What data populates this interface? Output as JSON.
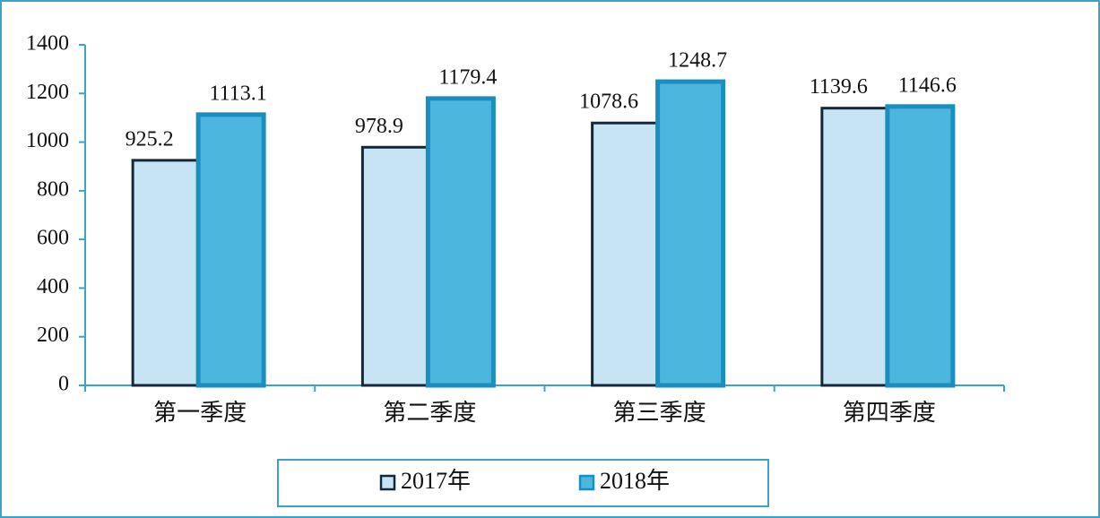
{
  "chart_data": {
    "type": "bar",
    "categories": [
      "第一季度",
      "第二季度",
      "第三季度",
      "第四季度"
    ],
    "series": [
      {
        "name": "2017年",
        "color": "#c6e4f4",
        "values": [
          925.2,
          978.9,
          1078.6,
          1139.6
        ]
      },
      {
        "name": "2018年",
        "color": "#4db6df",
        "values": [
          1113.1,
          1179.4,
          1248.7,
          1146.6
        ]
      }
    ],
    "ylim": [
      0,
      1400
    ],
    "yticks": [
      0,
      200,
      400,
      600,
      800,
      1000,
      1200,
      1400
    ],
    "grid": false
  }
}
